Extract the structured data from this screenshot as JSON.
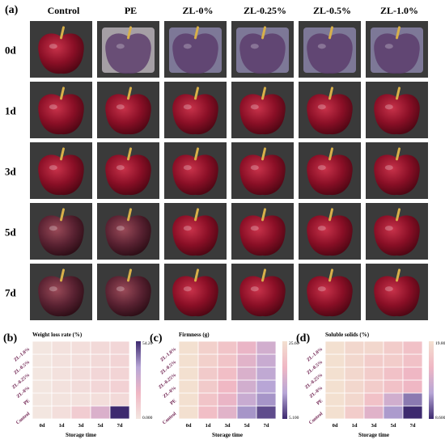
{
  "figure": {
    "panel_a_label": "(a)",
    "columns": [
      "Control",
      "PE",
      "ZL-0%",
      "ZL-0.25%",
      "ZL-0.5%",
      "ZL-1.0%"
    ],
    "rows": [
      "0d",
      "1d",
      "3d",
      "5d",
      "7d"
    ]
  },
  "chart_data": [
    {
      "type": "heatmap",
      "panel": "(b)",
      "title": "Weight loss rate (%)",
      "xlabel": "Storage time",
      "categories_x": [
        "0d",
        "1d",
        "3d",
        "5d",
        "7d"
      ],
      "categories_y": [
        "Control",
        "PE",
        "ZL-0%",
        "ZL-0.25%",
        "ZL-0.5%",
        "ZL-1.0%"
      ],
      "colorbar": {
        "max_label": "54.20",
        "min_label": "0.000",
        "min": 0,
        "max": 54.2,
        "colors": [
          "#f3e6e0",
          "#f0b7c4",
          "#b7a6d6",
          "#3d2a6f"
        ]
      },
      "values": [
        [
          0,
          3,
          10,
          25,
          54.2
        ],
        [
          0,
          1,
          2,
          3,
          5
        ],
        [
          0,
          2,
          4,
          6,
          8
        ],
        [
          0,
          2,
          4,
          6,
          7
        ],
        [
          0,
          2,
          3,
          5,
          7
        ],
        [
          0,
          2,
          3,
          5,
          6
        ]
      ]
    },
    {
      "type": "heatmap",
      "panel": "(c)",
      "title": "Firmness (g)",
      "xlabel": "Storage time",
      "categories_x": [
        "0d",
        "1d",
        "3d",
        "5d",
        "7d"
      ],
      "categories_y": [
        "Control",
        "PE",
        "ZL-0%",
        "ZL-0.25%",
        "ZL-0.5%",
        "ZL-1.0%"
      ],
      "colorbar": {
        "max_label": "25.60",
        "min_label": "5.100",
        "min": 5.1,
        "max": 25.6,
        "colors": [
          "#3d2a6f",
          "#b7a6d6",
          "#f0b7c4",
          "#f3e0d0"
        ]
      },
      "values": [
        [
          25.6,
          20,
          17,
          11,
          7
        ],
        [
          25.6,
          21,
          18,
          14,
          11
        ],
        [
          25.6,
          22,
          19,
          15,
          12
        ],
        [
          25.6,
          22,
          20,
          16,
          13
        ],
        [
          25.6,
          23,
          21,
          17,
          14
        ],
        [
          25.6,
          23,
          21,
          18,
          15
        ]
      ]
    },
    {
      "type": "heatmap",
      "panel": "(d)",
      "title": "Soluble solids (%)",
      "xlabel": "Storage time",
      "categories_x": [
        "0d",
        "1d",
        "3d",
        "5d",
        "7d"
      ],
      "categories_y": [
        "Control",
        "PE",
        "ZL-0%",
        "ZL-0.25%",
        "ZL-0.5%",
        "ZL-1.0%"
      ],
      "colorbar": {
        "max_label": "19.80",
        "min_label": "8.600",
        "min": 8.6,
        "max": 19.8,
        "colors": [
          "#3d2a6f",
          "#b7a6d6",
          "#f0b7c4",
          "#f3e0d0"
        ]
      },
      "values": [
        [
          19.8,
          18,
          15,
          12,
          8.6
        ],
        [
          19.8,
          19,
          17,
          14,
          11
        ],
        [
          19.8,
          19,
          18,
          17,
          16
        ],
        [
          19.8,
          19,
          18,
          17,
          16
        ],
        [
          19.8,
          19,
          18,
          18,
          17
        ],
        [
          19.8,
          19,
          19,
          18,
          17
        ]
      ]
    }
  ]
}
